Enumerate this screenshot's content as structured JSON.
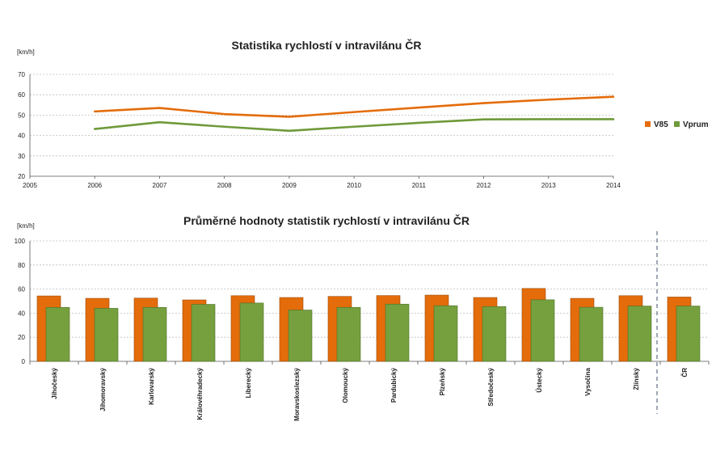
{
  "chart_data": [
    {
      "type": "line",
      "title": "Statistika rychlostí v intravilánu ČR",
      "ylabel": "[km/h]",
      "xlabel": "",
      "x": [
        2006,
        2007,
        2008,
        2009,
        2010,
        2011,
        2012,
        2013,
        2014
      ],
      "xticks": [
        2005,
        2006,
        2007,
        2008,
        2009,
        2010,
        2011,
        2012,
        2013,
        2014
      ],
      "xlim": [
        2005,
        2014
      ],
      "ylim": [
        20,
        70
      ],
      "yticks": [
        20,
        30,
        40,
        50,
        60,
        70
      ],
      "grid": true,
      "legend_position": "right",
      "series": [
        {
          "name": "V85",
          "color": "#E46C0A",
          "values": [
            51.8,
            53.5,
            50.5,
            49.2,
            51.5,
            53.7,
            55.9,
            57.6,
            59.0
          ]
        },
        {
          "name": "Vprum",
          "color": "#6E9A3A",
          "values": [
            43.2,
            46.5,
            44.3,
            42.3,
            44.3,
            46.2,
            47.9,
            48.0,
            48.0
          ]
        }
      ]
    },
    {
      "type": "bar",
      "title": "Průměrné hodnoty statistik rychlostí v intravilánu ČR",
      "ylabel": "[km/h]",
      "xlabel": "",
      "ylim": [
        0,
        100
      ],
      "yticks": [
        0,
        20,
        40,
        60,
        80,
        100
      ],
      "grid": true,
      "categories": [
        "Jihočeský",
        "Jihomoravský",
        "Karlovarský",
        "Královéhradecký",
        "Liberecký",
        "Moravskoslezský",
        "Olomoucký",
        "Pardubický",
        "Plzeňský",
        "Středočeský",
        "Ústecký",
        "Vysočina",
        "Zlínský",
        "ČR"
      ],
      "series": [
        {
          "name": "V85",
          "color": "#E46C0A",
          "values": [
            54.3,
            52.3,
            52.5,
            51.0,
            54.5,
            53.0,
            53.9,
            54.6,
            55.0,
            53.0,
            60.5,
            52.3,
            54.5,
            53.4
          ]
        },
        {
          "name": "Vprum",
          "color": "#76A03E",
          "values": [
            44.8,
            44.0,
            44.8,
            47.3,
            48.4,
            42.6,
            44.8,
            47.5,
            46.2,
            45.5,
            51.1,
            44.9,
            45.9,
            45.9
          ]
        }
      ]
    }
  ]
}
